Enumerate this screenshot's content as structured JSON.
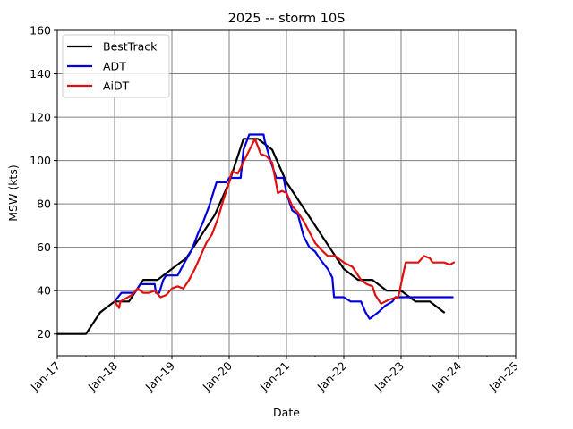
{
  "chart_data": {
    "type": "line",
    "title": "2025 -- storm 10S",
    "xlabel": "Date",
    "ylabel": "MSW (kts)",
    "ylim": [
      10,
      160
    ],
    "xlim": [
      0,
      8
    ],
    "yticks": [
      20,
      40,
      60,
      80,
      100,
      120,
      140,
      160
    ],
    "xticks": [
      {
        "value": 0,
        "label": "Jan-17"
      },
      {
        "value": 1,
        "label": "Jan-18"
      },
      {
        "value": 2,
        "label": "Jan-19"
      },
      {
        "value": 3,
        "label": "Jan-20"
      },
      {
        "value": 4,
        "label": "Jan-21"
      },
      {
        "value": 5,
        "label": "Jan-22"
      },
      {
        "value": 6,
        "label": "Jan-23"
      },
      {
        "value": 7,
        "label": "Jan-24"
      },
      {
        "value": 8,
        "label": "Jan-25"
      }
    ],
    "grid": true,
    "legend_position": "top-left",
    "series": [
      {
        "name": "BestTrack",
        "color": "#000000",
        "points": [
          [
            0,
            20
          ],
          [
            0.5,
            20
          ],
          [
            0.75,
            30
          ],
          [
            1,
            35
          ],
          [
            1.25,
            35
          ],
          [
            1.5,
            45
          ],
          [
            1.75,
            45
          ],
          [
            2,
            50
          ],
          [
            2.25,
            55
          ],
          [
            2.5,
            65
          ],
          [
            2.75,
            75
          ],
          [
            3,
            90
          ],
          [
            3.25,
            110
          ],
          [
            3.5,
            110
          ],
          [
            3.75,
            105
          ],
          [
            4,
            90
          ],
          [
            4.25,
            80
          ],
          [
            4.5,
            70
          ],
          [
            4.75,
            60
          ],
          [
            5,
            50
          ],
          [
            5.25,
            45
          ],
          [
            5.5,
            45
          ],
          [
            5.75,
            40
          ],
          [
            6,
            40
          ],
          [
            6.25,
            35
          ],
          [
            6.5,
            35
          ],
          [
            6.75,
            30
          ]
        ]
      },
      {
        "name": "ADT",
        "color": "#0000dd",
        "points": [
          [
            1,
            35
          ],
          [
            1.12,
            39
          ],
          [
            1.35,
            39
          ],
          [
            1.45,
            43
          ],
          [
            1.7,
            43
          ],
          [
            1.72,
            39
          ],
          [
            1.78,
            39
          ],
          [
            1.85,
            45
          ],
          [
            1.9,
            47
          ],
          [
            2.1,
            47
          ],
          [
            2.2,
            52
          ],
          [
            2.35,
            59
          ],
          [
            2.45,
            66
          ],
          [
            2.55,
            72
          ],
          [
            2.65,
            79
          ],
          [
            2.72,
            85
          ],
          [
            2.78,
            90
          ],
          [
            2.95,
            90
          ],
          [
            3,
            92
          ],
          [
            3.2,
            92
          ],
          [
            3.25,
            105
          ],
          [
            3.35,
            112
          ],
          [
            3.6,
            112
          ],
          [
            3.62,
            109
          ],
          [
            3.72,
            100
          ],
          [
            3.82,
            92
          ],
          [
            3.95,
            92
          ],
          [
            4,
            85
          ],
          [
            4.1,
            77
          ],
          [
            4.2,
            75
          ],
          [
            4.3,
            65
          ],
          [
            4.4,
            60
          ],
          [
            4.5,
            58
          ],
          [
            4.6,
            54
          ],
          [
            4.72,
            50
          ],
          [
            4.8,
            46
          ],
          [
            4.83,
            37
          ],
          [
            5,
            37
          ],
          [
            5.12,
            35
          ],
          [
            5.3,
            35
          ],
          [
            5.38,
            30
          ],
          [
            5.45,
            27
          ],
          [
            5.6,
            30
          ],
          [
            5.72,
            33
          ],
          [
            5.85,
            35
          ],
          [
            5.9,
            37
          ],
          [
            6.9,
            37
          ]
        ]
      },
      {
        "name": "AiDT",
        "color": "#e01010",
        "points": [
          [
            1,
            35
          ],
          [
            1.08,
            32
          ],
          [
            1.1,
            35
          ],
          [
            1.3,
            38
          ],
          [
            1.4,
            41
          ],
          [
            1.5,
            39
          ],
          [
            1.6,
            39
          ],
          [
            1.7,
            40
          ],
          [
            1.8,
            37
          ],
          [
            1.9,
            38
          ],
          [
            2,
            41
          ],
          [
            2.1,
            42
          ],
          [
            2.2,
            41
          ],
          [
            2.3,
            45
          ],
          [
            2.4,
            50
          ],
          [
            2.5,
            56
          ],
          [
            2.6,
            62
          ],
          [
            2.7,
            66
          ],
          [
            2.8,
            73
          ],
          [
            2.9,
            82
          ],
          [
            3,
            90
          ],
          [
            3.05,
            95
          ],
          [
            3.15,
            94
          ],
          [
            3.3,
            102
          ],
          [
            3.45,
            110
          ],
          [
            3.55,
            103
          ],
          [
            3.65,
            102
          ],
          [
            3.75,
            99
          ],
          [
            3.85,
            85
          ],
          [
            3.92,
            86
          ],
          [
            4,
            85
          ],
          [
            4.1,
            79
          ],
          [
            4.2,
            76
          ],
          [
            4.3,
            72
          ],
          [
            4.4,
            67
          ],
          [
            4.5,
            62
          ],
          [
            4.6,
            59
          ],
          [
            4.72,
            56
          ],
          [
            4.85,
            56
          ],
          [
            5,
            53
          ],
          [
            5.15,
            51
          ],
          [
            5.3,
            45
          ],
          [
            5.4,
            43
          ],
          [
            5.5,
            42
          ],
          [
            5.55,
            38
          ],
          [
            5.65,
            34
          ],
          [
            5.8,
            36
          ],
          [
            5.95,
            37
          ],
          [
            6.08,
            53
          ],
          [
            6.3,
            53
          ],
          [
            6.4,
            56
          ],
          [
            6.5,
            55
          ],
          [
            6.55,
            53
          ],
          [
            6.75,
            53
          ],
          [
            6.85,
            52
          ],
          [
            6.92,
            53
          ]
        ]
      }
    ]
  }
}
